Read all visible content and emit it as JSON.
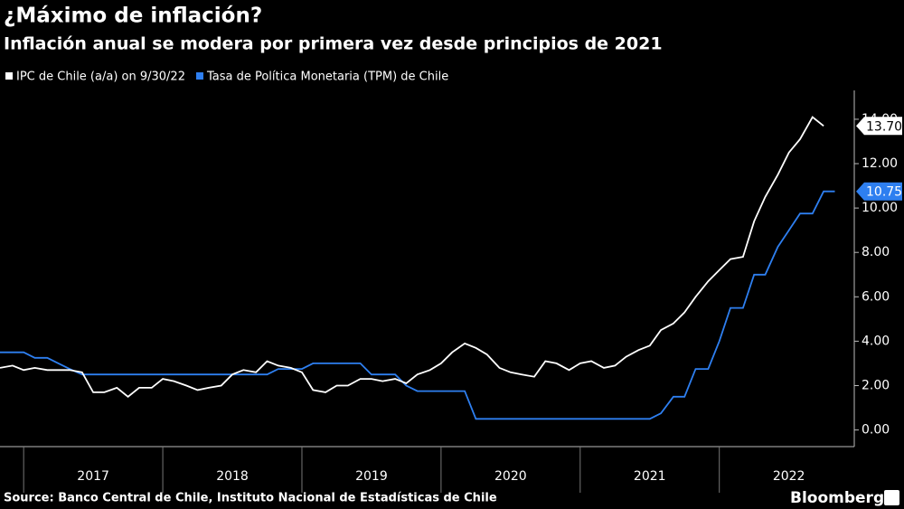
{
  "chart_data": {
    "type": "line",
    "title": "¿Máximo de inflación?",
    "subtitle": "Inflación anual se modera por primera vez desde principios de 2021",
    "source": "Source: Banco Central de Chile, Instituto Nacional de Estadísticas de Chile",
    "brand": "Bloomberg",
    "x": [
      2016.83,
      2016.92,
      2017.0,
      2017.08,
      2017.17,
      2017.25,
      2017.33,
      2017.42,
      2017.5,
      2017.58,
      2017.67,
      2017.75,
      2017.83,
      2017.92,
      2018.0,
      2018.08,
      2018.17,
      2018.25,
      2018.33,
      2018.42,
      2018.5,
      2018.58,
      2018.67,
      2018.75,
      2018.83,
      2018.92,
      2019.0,
      2019.08,
      2019.17,
      2019.25,
      2019.33,
      2019.42,
      2019.5,
      2019.58,
      2019.67,
      2019.75,
      2019.83,
      2019.92,
      2020.0,
      2020.08,
      2020.17,
      2020.25,
      2020.33,
      2020.42,
      2020.5,
      2020.58,
      2020.67,
      2020.75,
      2020.83,
      2020.92,
      2021.0,
      2021.08,
      2021.17,
      2021.25,
      2021.33,
      2021.42,
      2021.5,
      2021.58,
      2021.67,
      2021.75,
      2021.83,
      2021.92,
      2022.0,
      2022.08,
      2022.17,
      2022.25,
      2022.33,
      2022.42,
      2022.5,
      2022.58,
      2022.67,
      2022.75,
      2022.83
    ],
    "series": [
      {
        "name": "IPC de Chile (a/a) on 9/30/22",
        "color": "#ffffff",
        "values": [
          2.8,
          2.9,
          2.7,
          2.8,
          2.7,
          2.7,
          2.7,
          2.6,
          1.7,
          1.7,
          1.9,
          1.5,
          1.9,
          1.9,
          2.3,
          2.2,
          2.0,
          1.8,
          1.9,
          2.0,
          2.5,
          2.7,
          2.6,
          3.1,
          2.9,
          2.8,
          2.6,
          1.8,
          1.7,
          2.0,
          2.0,
          2.3,
          2.3,
          2.2,
          2.3,
          2.1,
          2.5,
          2.7,
          3.0,
          3.5,
          3.9,
          3.7,
          3.4,
          2.8,
          2.6,
          2.5,
          2.4,
          3.1,
          3.0,
          2.7,
          3.0,
          3.1,
          2.8,
          2.9,
          3.3,
          3.6,
          3.8,
          4.5,
          4.8,
          5.3,
          6.0,
          6.7,
          7.2,
          7.7,
          7.8,
          9.4,
          10.5,
          11.5,
          12.5,
          13.1,
          14.1,
          13.7,
          null
        ],
        "value_labels": [
          null,
          null,
          null,
          null,
          null,
          null,
          null,
          null,
          null,
          null,
          null,
          null,
          null,
          null,
          null,
          null,
          null,
          null,
          null,
          null,
          null,
          null,
          null,
          null,
          null,
          null,
          null,
          null,
          null,
          null,
          null,
          null,
          null,
          null,
          null,
          null,
          null,
          null,
          null,
          null,
          null,
          null,
          null,
          null,
          null,
          null,
          null,
          null,
          null,
          null,
          null,
          null,
          null,
          null,
          null,
          null,
          null,
          null,
          null,
          null,
          null,
          null,
          null,
          null,
          null,
          null,
          null,
          null,
          null,
          null,
          null,
          "13.70",
          null
        ]
      },
      {
        "name": "Tasa de Política Monetaria (TPM) de Chile",
        "color": "#2e7ff0",
        "values": [
          3.5,
          3.5,
          3.5,
          3.25,
          3.25,
          3.0,
          2.75,
          2.5,
          2.5,
          2.5,
          2.5,
          2.5,
          2.5,
          2.5,
          2.5,
          2.5,
          2.5,
          2.5,
          2.5,
          2.5,
          2.5,
          2.5,
          2.5,
          2.5,
          2.75,
          2.75,
          2.75,
          3.0,
          3.0,
          3.0,
          3.0,
          3.0,
          2.5,
          2.5,
          2.5,
          2.0,
          1.75,
          1.75,
          1.75,
          1.75,
          1.75,
          0.5,
          0.5,
          0.5,
          0.5,
          0.5,
          0.5,
          0.5,
          0.5,
          0.5,
          0.5,
          0.5,
          0.5,
          0.5,
          0.5,
          0.5,
          0.5,
          0.75,
          1.5,
          1.5,
          2.75,
          2.75,
          4.0,
          5.5,
          5.5,
          7.0,
          7.0,
          8.25,
          9.0,
          9.75,
          9.75,
          10.75,
          10.75
        ],
        "value_labels": [
          null,
          null,
          null,
          null,
          null,
          null,
          null,
          null,
          null,
          null,
          null,
          null,
          null,
          null,
          null,
          null,
          null,
          null,
          null,
          null,
          null,
          null,
          null,
          null,
          null,
          null,
          null,
          null,
          null,
          null,
          null,
          null,
          null,
          null,
          null,
          null,
          null,
          null,
          null,
          null,
          null,
          null,
          null,
          null,
          null,
          null,
          null,
          null,
          null,
          null,
          null,
          null,
          null,
          null,
          null,
          null,
          null,
          null,
          null,
          null,
          null,
          null,
          null,
          null,
          null,
          null,
          null,
          null,
          null,
          null,
          null,
          null,
          "10.75"
        ]
      }
    ],
    "xlim": [
      2016.83,
      2022.97
    ],
    "xticks": [
      {
        "value": 2017,
        "label": "2017"
      },
      {
        "value": 2018,
        "label": "2018"
      },
      {
        "value": 2019,
        "label": "2019"
      },
      {
        "value": 2020,
        "label": "2020"
      },
      {
        "value": 2021,
        "label": "2021"
      },
      {
        "value": 2022,
        "label": "2022"
      }
    ],
    "ylim": [
      -0.75,
      15.3
    ],
    "yticks": [
      {
        "value": 0,
        "label": "0.00"
      },
      {
        "value": 2,
        "label": "2.00"
      },
      {
        "value": 4,
        "label": "4.00"
      },
      {
        "value": 6,
        "label": "6.00"
      },
      {
        "value": 8,
        "label": "8.00"
      },
      {
        "value": 10,
        "label": "10.00"
      },
      {
        "value": 12,
        "label": "12.00"
      },
      {
        "value": 14,
        "label": "14.00"
      }
    ],
    "grid": false,
    "y_axis_side": "right"
  }
}
